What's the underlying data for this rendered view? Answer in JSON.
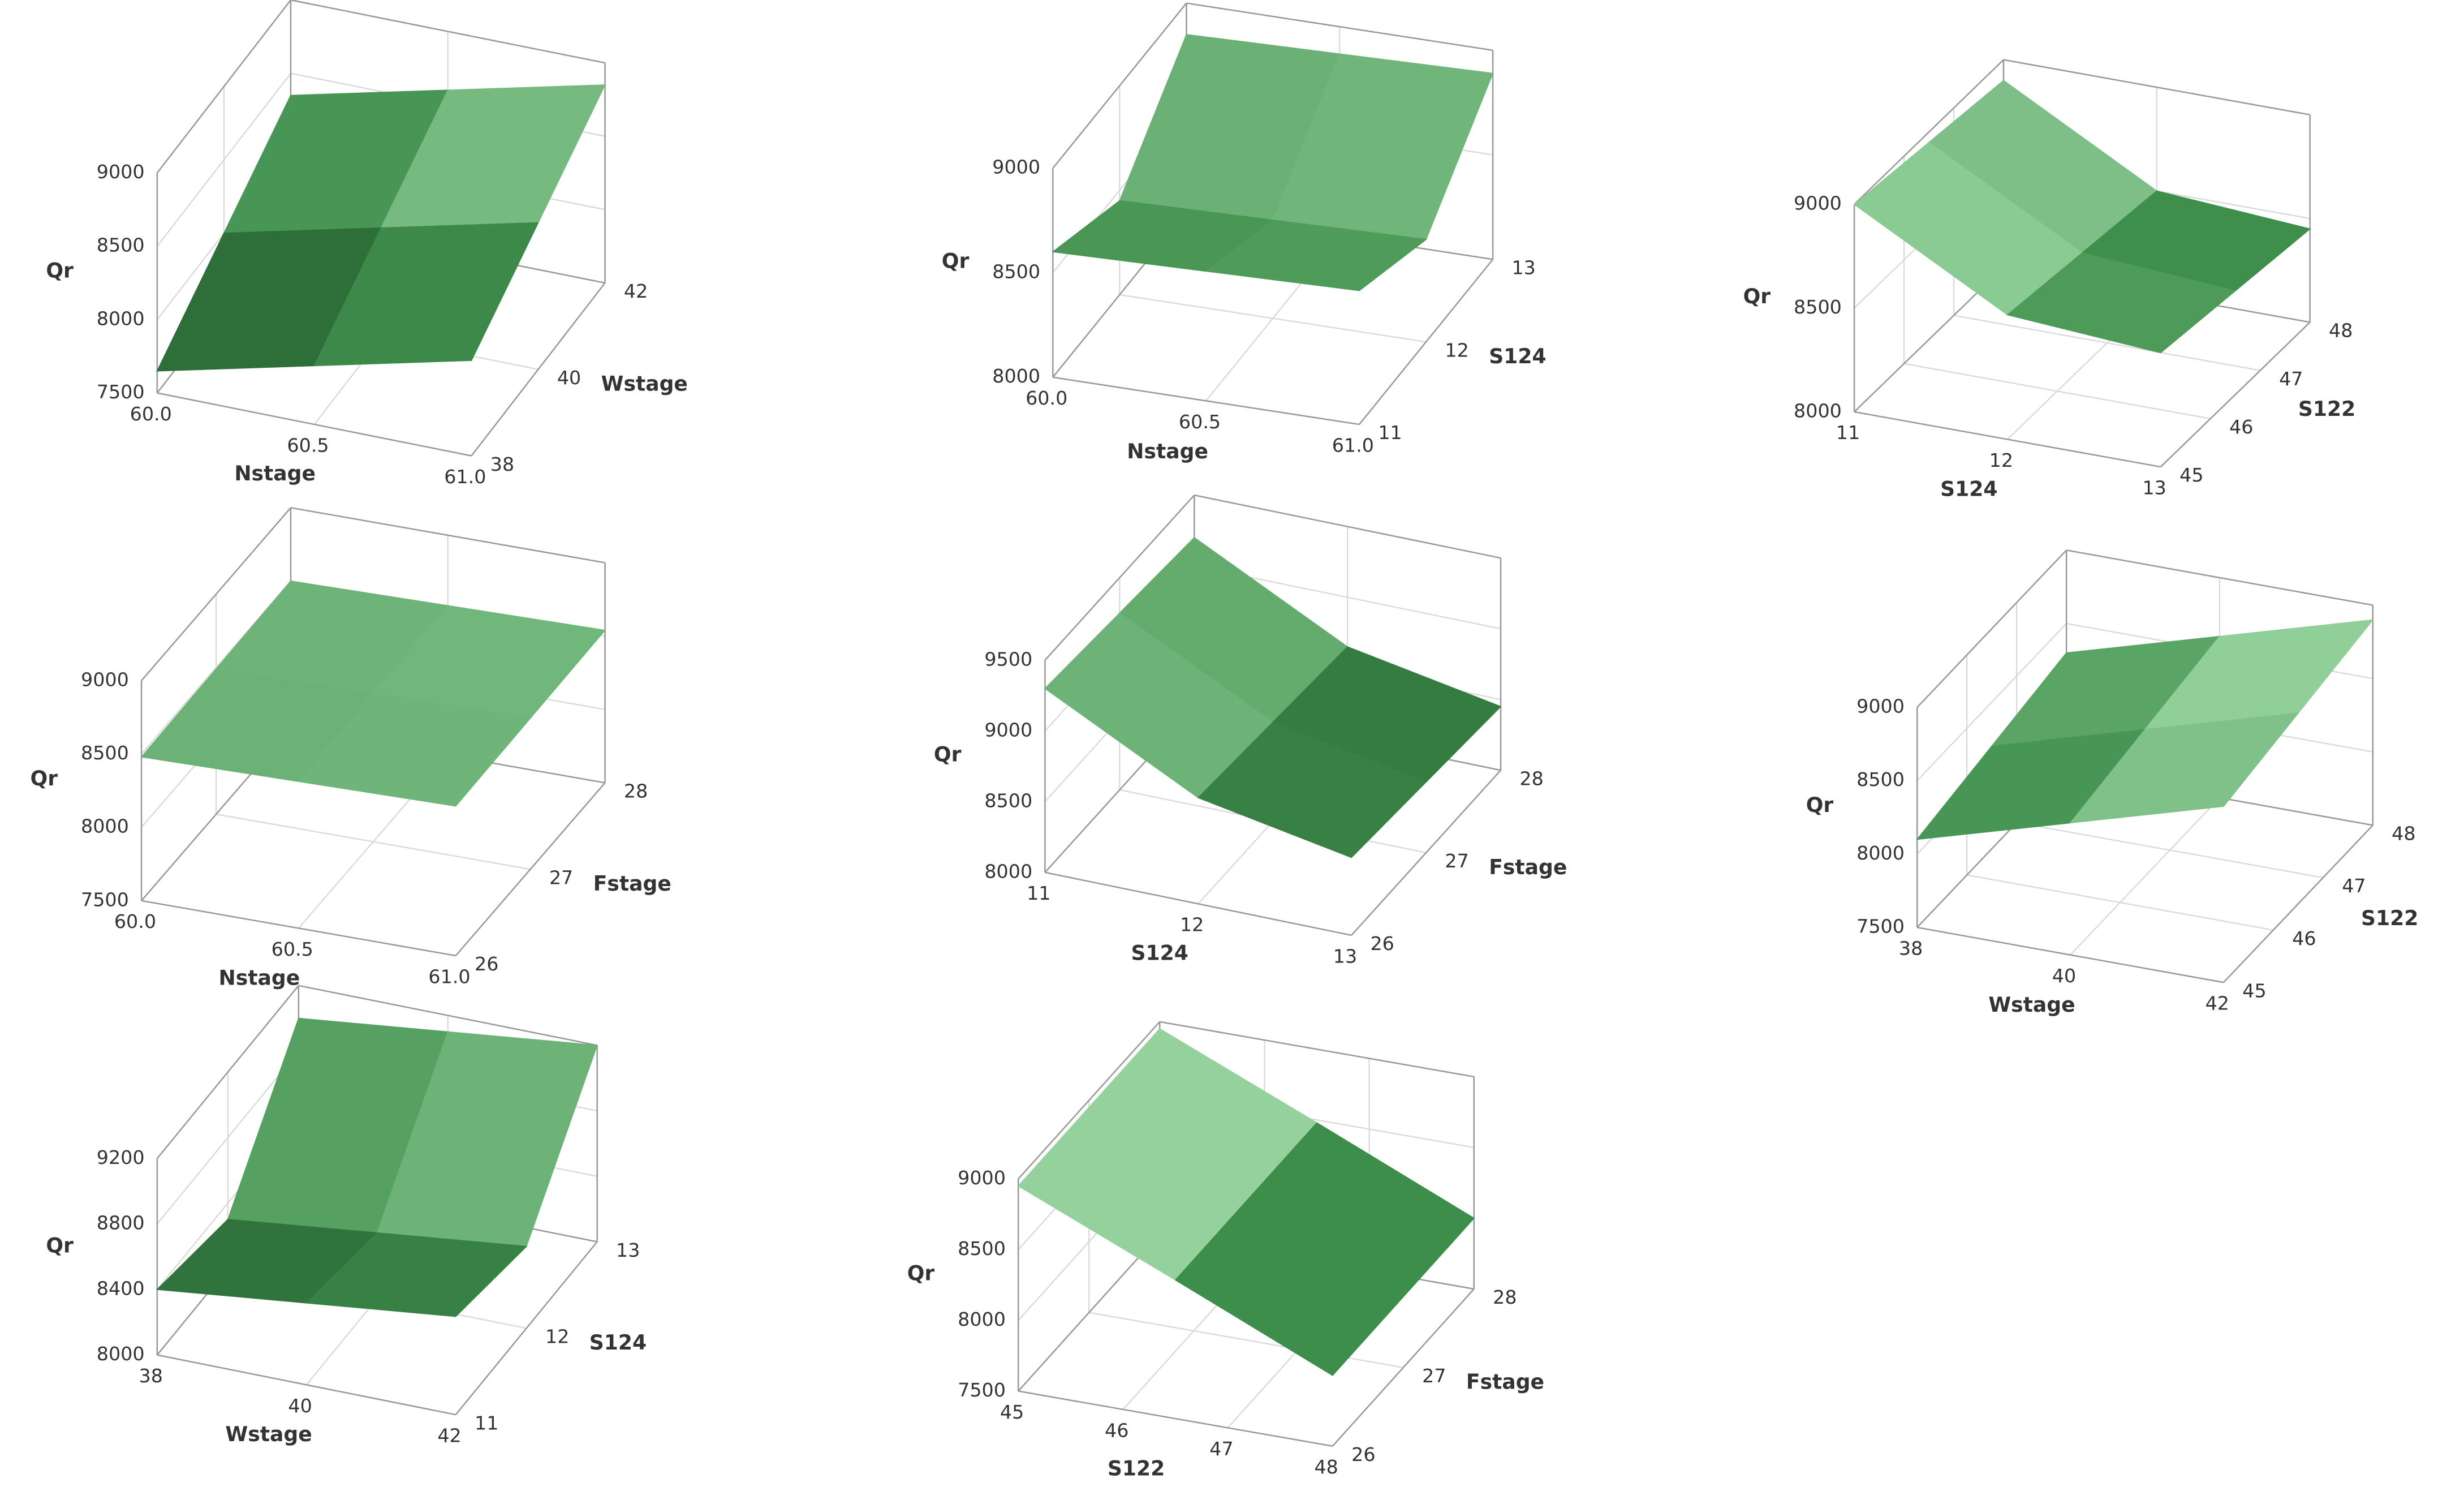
{
  "chart_data": [
    {
      "type": "surface",
      "xlabel": "Nstage",
      "ylabel": "Wstage",
      "zlabel": "Qr",
      "color": "#3f8f4c",
      "xlim": [
        60,
        61
      ],
      "xticks": [
        {
          "value": 60,
          "label": "60.0"
        },
        {
          "value": 60.5,
          "label": "60.5"
        },
        {
          "value": 61,
          "label": "61.0"
        }
      ],
      "ylim": [
        38,
        42
      ],
      "yticks": [
        38,
        40,
        42
      ],
      "zlim": [
        7500,
        9000
      ],
      "zticks": [
        7500,
        8000,
        8500,
        9000
      ],
      "z": [
        [
          7650,
          7900,
          8150
        ],
        [
          8000,
          8250,
          8500
        ],
        [
          8350,
          8600,
          8850
        ]
      ]
    },
    {
      "type": "surface",
      "xlabel": "Nstage",
      "ylabel": "S124",
      "zlabel": "Qr",
      "color": "#3f8f4c",
      "xlim": [
        60,
        61
      ],
      "xticks": [
        {
          "value": 60,
          "label": "60.0"
        },
        {
          "value": 60.5,
          "label": "60.5"
        },
        {
          "value": 61,
          "label": "61.0"
        }
      ],
      "ylim": [
        11,
        13
      ],
      "yticks": [
        11,
        12,
        13
      ],
      "zlim": [
        8000,
        9000
      ],
      "zticks": [
        8000,
        8500,
        9000
      ],
      "z": [
        [
          8600,
          8620,
          8640
        ],
        [
          8450,
          8470,
          8490
        ],
        [
          8850,
          8870,
          8890
        ]
      ]
    },
    {
      "type": "surface",
      "xlabel": "S124",
      "ylabel": "S122",
      "zlabel": "Qr",
      "color": "#3f8f4c",
      "xlim": [
        11,
        13
      ],
      "xticks": [
        11,
        12,
        13
      ],
      "ylim": [
        45,
        48
      ],
      "yticks": [
        45,
        46,
        47,
        48
      ],
      "zlim": [
        8000,
        9000
      ],
      "zticks": [
        8000,
        8500,
        9000
      ],
      "z": [
        [
          9000,
          8600,
          8550
        ],
        [
          8950,
          8550,
          8500
        ],
        [
          8900,
          8500,
          8450
        ]
      ]
    },
    {
      "type": "surface",
      "xlabel": "Nstage",
      "ylabel": "Fstage",
      "zlabel": "Qr",
      "color": "#3f8f4c",
      "xlim": [
        60,
        61
      ],
      "xticks": [
        {
          "value": 60,
          "label": "60.0"
        },
        {
          "value": 60.5,
          "label": "60.5"
        },
        {
          "value": 61,
          "label": "61.0"
        }
      ],
      "ylim": [
        26,
        28
      ],
      "yticks": [
        26,
        27,
        28
      ],
      "zlim": [
        7500,
        9000
      ],
      "zticks": [
        7500,
        8000,
        8500,
        9000
      ],
      "z": [
        [
          8480,
          8500,
          8520
        ],
        [
          8490,
          8510,
          8530
        ],
        [
          8500,
          8520,
          8540
        ]
      ]
    },
    {
      "type": "surface",
      "xlabel": "S124",
      "ylabel": "Fstage",
      "zlabel": "Qr",
      "color": "#3f8f4c",
      "xlim": [
        11,
        13
      ],
      "xticks": [
        11,
        12,
        13
      ],
      "ylim": [
        26,
        28
      ],
      "yticks": [
        26,
        27,
        28
      ],
      "zlim": [
        8000,
        9500
      ],
      "zticks": [
        8000,
        8500,
        9000,
        9500
      ],
      "z": [
        [
          9300,
          8750,
          8550
        ],
        [
          9250,
          8700,
          8500
        ],
        [
          9200,
          8650,
          8450
        ]
      ]
    },
    {
      "type": "surface",
      "xlabel": "Wstage",
      "ylabel": "S122",
      "zlabel": "Qr",
      "color": "#3f8f4c",
      "xlim": [
        38,
        42
      ],
      "xticks": [
        38,
        40,
        42
      ],
      "ylim": [
        45,
        48
      ],
      "yticks": [
        45,
        46,
        47,
        48
      ],
      "zlim": [
        7500,
        9000
      ],
      "zticks": [
        7500,
        8000,
        8500,
        9000
      ],
      "z": [
        [
          8100,
          8400,
          8700
        ],
        [
          8200,
          8500,
          8800
        ],
        [
          8300,
          8600,
          8900
        ]
      ]
    },
    {
      "type": "surface",
      "xlabel": "Wstage",
      "ylabel": "S124",
      "zlabel": "Qr",
      "color": "#3f8f4c",
      "xlim": [
        38,
        42
      ],
      "xticks": [
        38,
        40,
        42
      ],
      "ylim": [
        11,
        13
      ],
      "yticks": [
        11,
        12,
        13
      ],
      "zlim": [
        8000,
        9200
      ],
      "zticks": [
        8000,
        8400,
        8800,
        9200
      ],
      "z": [
        [
          8400,
          8500,
          8600
        ],
        [
          8300,
          8400,
          8500
        ],
        [
          9000,
          9100,
          9200
        ]
      ]
    },
    {
      "type": "surface",
      "xlabel": "S122",
      "ylabel": "Fstage",
      "zlabel": "Qr",
      "color": "#3f8f4c",
      "xlim": [
        45,
        48
      ],
      "xticks": [
        45,
        46,
        47,
        48
      ],
      "ylim": [
        26,
        28
      ],
      "yticks": [
        26,
        27,
        28
      ],
      "zlim": [
        7500,
        9000
      ],
      "zticks": [
        7500,
        8000,
        8500,
        9000
      ],
      "z": [
        [
          8950,
          8480,
          8000
        ],
        [
          8950,
          8480,
          8000
        ],
        [
          8950,
          8480,
          8000
        ]
      ]
    }
  ]
}
